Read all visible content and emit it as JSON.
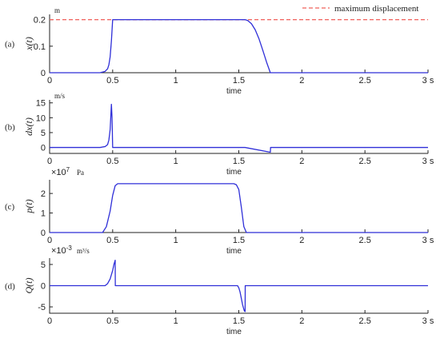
{
  "legend": {
    "label": "maximum displacement",
    "color": "#f0605a"
  },
  "xaxis": {
    "ticks": [
      "0",
      "0.5",
      "1",
      "1.5",
      "2",
      "2.5",
      "3 s"
    ],
    "values": [
      0,
      0.5,
      1,
      1.5,
      2,
      2.5,
      3
    ],
    "label": "time",
    "range": [
      0,
      3
    ]
  },
  "line_color": "#2f2fd8",
  "chart_data": [
    {
      "type": "line",
      "panel_label": "(a)",
      "ylabel": "x(t)",
      "unit": "m",
      "yticks": [
        "0",
        "0.1",
        "0.2"
      ],
      "ytick_values": [
        0,
        0.1,
        0.2
      ],
      "ylim": [
        0,
        0.22
      ],
      "reference_line": {
        "name": "maximum displacement",
        "y": 0.2
      },
      "series": [
        {
          "x": [
            0,
            0.4,
            0.44,
            0.46,
            0.47,
            0.48,
            0.49,
            0.5,
            0.52,
            1.0,
            1.55,
            1.57,
            1.6,
            1.63,
            1.66,
            1.69,
            1.72,
            1.75,
            2.0,
            3.0
          ],
          "y": [
            0,
            0,
            0.005,
            0.015,
            0.03,
            0.06,
            0.12,
            0.2,
            0.2,
            0.2,
            0.2,
            0.197,
            0.185,
            0.162,
            0.128,
            0.085,
            0.04,
            0,
            0,
            0
          ]
        }
      ]
    },
    {
      "type": "line",
      "panel_label": "(b)",
      "ylabel": "dx(t)",
      "unit": "m/s",
      "yticks": [
        "0",
        "5",
        "10",
        "15"
      ],
      "ytick_values": [
        0,
        5,
        10,
        15
      ],
      "ylim": [
        -2,
        16
      ],
      "series": [
        {
          "x": [
            0,
            0.4,
            0.44,
            0.46,
            0.47,
            0.48,
            0.49,
            0.495,
            0.5,
            0.51,
            1.55,
            1.75,
            1.752,
            3.0
          ],
          "y": [
            0,
            0,
            0.3,
            1.0,
            2.5,
            6,
            14.5,
            10,
            0,
            0,
            0,
            -1.6,
            0,
            0
          ]
        }
      ]
    },
    {
      "type": "line",
      "panel_label": "(c)",
      "ylabel": "p(t)",
      "unit": "Pa",
      "multiplier": "×10",
      "exponent": "7",
      "yticks": [
        "0",
        "1",
        "2"
      ],
      "ytick_values": [
        0,
        1,
        2
      ],
      "ylim": [
        0,
        2.7
      ],
      "series": [
        {
          "x": [
            0,
            0.42,
            0.45,
            0.48,
            0.5,
            0.52,
            0.54,
            1.46,
            1.48,
            1.5,
            1.52,
            1.54,
            1.56,
            3.0
          ],
          "y": [
            0,
            0,
            0.3,
            1.1,
            1.9,
            2.4,
            2.5,
            2.5,
            2.45,
            2.2,
            1.3,
            0.3,
            0,
            0
          ]
        }
      ]
    },
    {
      "type": "line",
      "panel_label": "(d)",
      "ylabel": "Q(t)",
      "unit": "m³/s",
      "multiplier": "×10",
      "exponent": "-3",
      "yticks": [
        "-5",
        "0",
        "5"
      ],
      "ytick_values": [
        -5,
        0,
        5
      ],
      "ylim": [
        -6.5,
        6.5
      ],
      "series": [
        {
          "x": [
            0,
            0.44,
            0.46,
            0.48,
            0.5,
            0.51,
            0.52,
            0.521,
            1.49,
            1.5,
            1.51,
            1.52,
            1.53,
            1.54,
            1.545,
            1.55,
            1.551,
            3.0
          ],
          "y": [
            0,
            0,
            0.5,
            1.6,
            3.6,
            5.0,
            6.0,
            0,
            0,
            -0.5,
            -1.5,
            -3.0,
            -4.5,
            -5.6,
            -6.0,
            -6.1,
            0,
            0
          ]
        }
      ]
    }
  ]
}
